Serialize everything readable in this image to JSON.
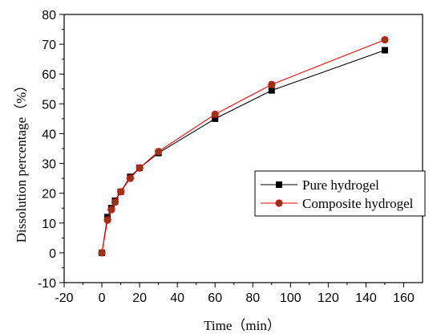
{
  "chart_data": {
    "type": "line",
    "xlabel": "Time（min）",
    "ylabel": "Dissolution percentage（%）",
    "xlim": [
      -20,
      170
    ],
    "ylim": [
      -10,
      80
    ],
    "xticks": [
      -20,
      0,
      20,
      40,
      60,
      80,
      100,
      120,
      140,
      160
    ],
    "yticks": [
      -10,
      0,
      10,
      20,
      30,
      40,
      50,
      60,
      70,
      80
    ],
    "grid": false,
    "legend_position": "right",
    "series": [
      {
        "name": "Pure hydrogel",
        "color": "#000000",
        "marker": "square",
        "x": [
          0,
          3,
          5,
          7,
          10,
          15,
          20,
          30,
          60,
          90,
          150
        ],
        "y": [
          0,
          12,
          15,
          17.5,
          20.5,
          25.5,
          28.5,
          33.5,
          45,
          54.5,
          68
        ]
      },
      {
        "name": "Composite hydrogel",
        "color": "#ff0000",
        "marker": "circle",
        "marker_fill": "#8b3a1a",
        "x": [
          0,
          3,
          5,
          7,
          10,
          15,
          20,
          30,
          60,
          90,
          150
        ],
        "y": [
          0,
          11,
          14.5,
          17,
          20.5,
          25,
          28.5,
          34,
          46.5,
          56.5,
          71.5
        ]
      }
    ]
  }
}
